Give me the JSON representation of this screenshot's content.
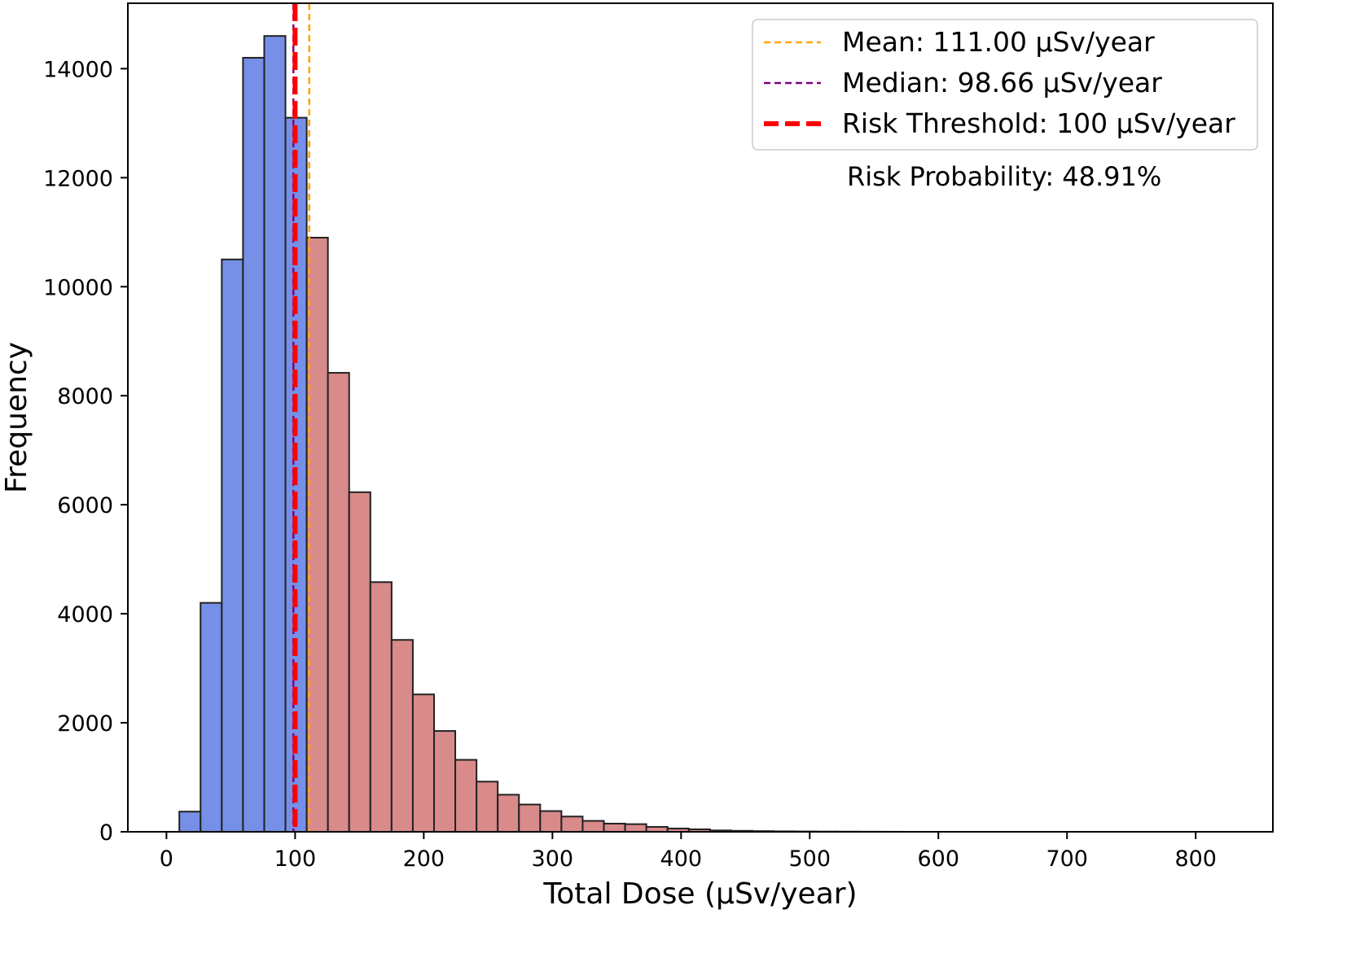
{
  "chart_data": {
    "type": "histogram",
    "xlabel": "Total Dose (µSv/year)",
    "ylabel": "Frequency",
    "xlim": [
      -30,
      860
    ],
    "ylim": [
      0,
      15200
    ],
    "xticks": [
      0,
      100,
      200,
      300,
      400,
      500,
      600,
      700,
      800
    ],
    "yticks": [
      0,
      2000,
      4000,
      6000,
      8000,
      10000,
      12000,
      14000
    ],
    "bin_start": 10,
    "bin_width": 16.5,
    "below_threshold_color": "#7590e6",
    "above_threshold_color": "#d98a8a",
    "bar_edge_color": "#222222",
    "values": [
      370,
      4200,
      10500,
      14200,
      14600,
      13100,
      10900,
      8420,
      6230,
      4580,
      3520,
      2520,
      1850,
      1320,
      920,
      680,
      500,
      380,
      280,
      200,
      150,
      140,
      90,
      60,
      45,
      25,
      18,
      12,
      8,
      6,
      4,
      3,
      2,
      1
    ],
    "reference_lines": [
      {
        "name": "Mean",
        "value": 111.0,
        "color": "#ffa500",
        "style": "dashed"
      },
      {
        "name": "Median",
        "value": 98.66,
        "color": "#800080",
        "style": "dashed"
      },
      {
        "name": "Risk Threshold",
        "value": 100,
        "color": "#ff0000",
        "style": "dashed-thick"
      }
    ],
    "legend": {
      "position": "top-right",
      "entries": [
        {
          "label": "Mean: 111.00 µSv/year",
          "color": "#ffa500"
        },
        {
          "label": "Median: 98.66 µSv/year",
          "color": "#800080"
        },
        {
          "label": "Risk Threshold: 100 µSv/year",
          "color": "#ff0000"
        }
      ]
    },
    "annotation": "Risk Probability: 48.91%"
  }
}
